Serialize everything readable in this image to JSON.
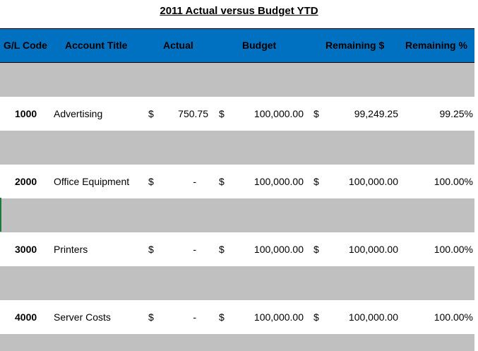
{
  "title": "2011 Actual versus Budget YTD",
  "headers": {
    "gl_code": "G/L Code",
    "account_title": "Account Title",
    "actual": "Actual",
    "budget": "Budget",
    "remaining_dollars": "Remaining $",
    "remaining_pct": "Remaining %"
  },
  "rows": [
    {
      "code": "1000",
      "title": "Advertising",
      "cur1": "$",
      "actual": "750.75",
      "cur2": "$",
      "budget": "100,000.00",
      "cur3": "$",
      "remaining": "99,249.25",
      "pct": "99.25%"
    },
    {
      "code": "2000",
      "title": "Office Equipment",
      "cur1": "$",
      "actual": "-",
      "cur2": "$",
      "budget": "100,000.00",
      "cur3": "$",
      "remaining": "100,000.00",
      "pct": "100.00%"
    },
    {
      "code": "3000",
      "title": "Printers",
      "cur1": "$",
      "actual": "-",
      "cur2": "$",
      "budget": "100,000.00",
      "cur3": "$",
      "remaining": "100,000.00",
      "pct": "100.00%"
    },
    {
      "code": "4000",
      "title": "Server Costs",
      "cur1": "$",
      "actual": "-",
      "cur2": "$",
      "budget": "100,000.00",
      "cur3": "$",
      "remaining": "100,000.00",
      "pct": "100.00%"
    }
  ],
  "colors": {
    "header_bg": "#0070c0",
    "band_bg": "#c0c0c0"
  }
}
